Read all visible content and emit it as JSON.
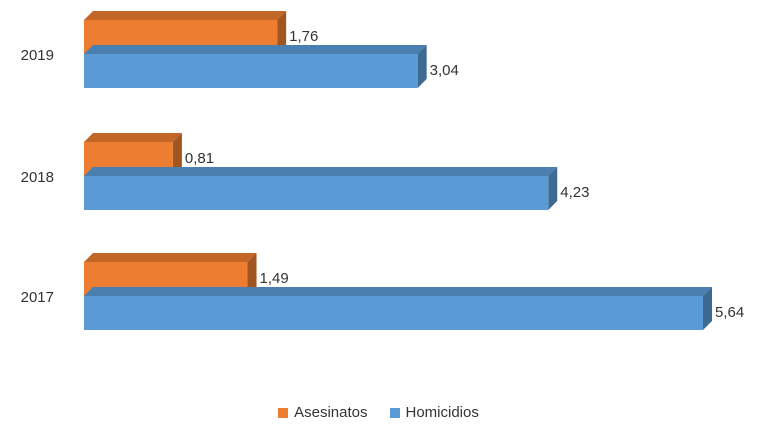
{
  "chart_data": {
    "type": "bar",
    "orientation": "horizontal",
    "style": "3d",
    "categories": [
      "2019",
      "2018",
      "2017"
    ],
    "series": [
      {
        "name": "Asesinatos",
        "color": "#ED7D31",
        "values": [
          1.76,
          0.81,
          1.49
        ],
        "labels": [
          "1,76",
          "0,81",
          "1,49"
        ]
      },
      {
        "name": "Homicidios",
        "color": "#5B9BD5",
        "values": [
          3.04,
          4.23,
          5.64
        ],
        "labels": [
          "3,04",
          "4,23",
          "5,64"
        ]
      }
    ],
    "title": "",
    "xlabel": "",
    "ylabel": "",
    "xlim": [
      0,
      5.64
    ],
    "grid": false,
    "legend_position": "bottom"
  }
}
